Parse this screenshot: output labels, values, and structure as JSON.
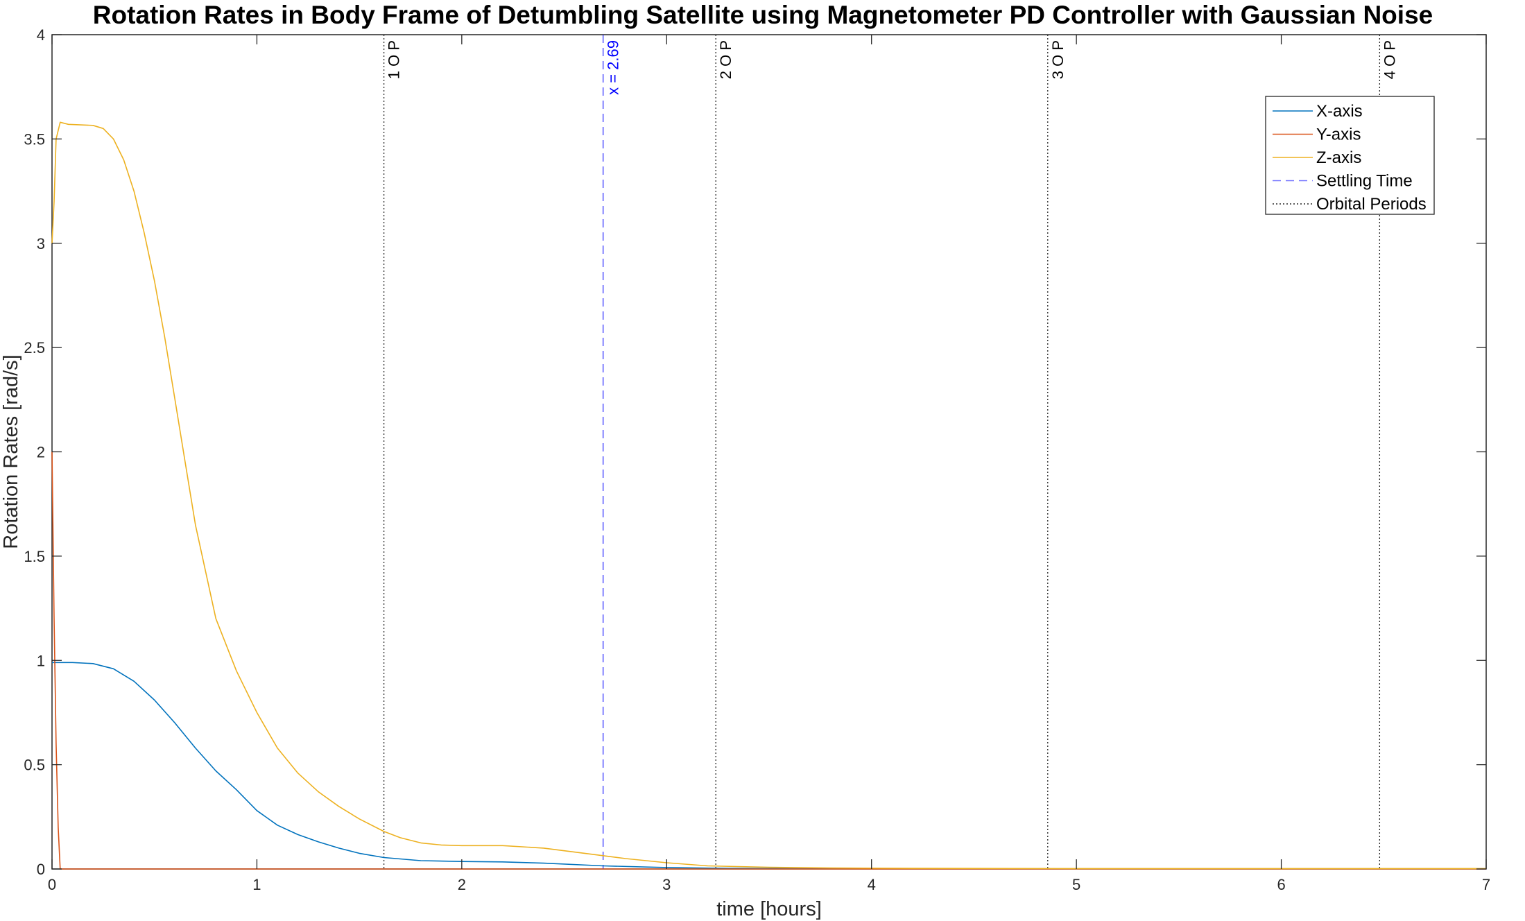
{
  "chart_data": {
    "type": "line",
    "title": "Rotation Rates in Body Frame of Detumbling Satellite using Magnetometer PD Controller with Gaussian Noise",
    "xlabel": "time [hours]",
    "ylabel": "Rotation Rates  [rad/s]",
    "xlim": [
      0,
      7
    ],
    "ylim": [
      0,
      4
    ],
    "x_ticks": [
      "0",
      "1",
      "2",
      "3",
      "4",
      "5",
      "6",
      "7"
    ],
    "y_ticks": [
      "0",
      "0.5",
      "1",
      "1.5",
      "2",
      "2.5",
      "3",
      "3.5",
      "4"
    ],
    "grid": false,
    "legend_position": "top-right",
    "series": [
      {
        "name": "X-axis",
        "color": "#0072BD",
        "points": [
          [
            0,
            0.99
          ],
          [
            0.02,
            0.99
          ],
          [
            0.1,
            0.99
          ],
          [
            0.2,
            0.985
          ],
          [
            0.3,
            0.96
          ],
          [
            0.4,
            0.9
          ],
          [
            0.5,
            0.81
          ],
          [
            0.6,
            0.7
          ],
          [
            0.7,
            0.58
          ],
          [
            0.8,
            0.47
          ],
          [
            0.9,
            0.38
          ],
          [
            1.0,
            0.28
          ],
          [
            1.1,
            0.21
          ],
          [
            1.2,
            0.165
          ],
          [
            1.3,
            0.13
          ],
          [
            1.4,
            0.1
          ],
          [
            1.5,
            0.075
          ],
          [
            1.62,
            0.055
          ],
          [
            1.8,
            0.04
          ],
          [
            2.0,
            0.036
          ],
          [
            2.2,
            0.034
          ],
          [
            2.4,
            0.028
          ],
          [
            2.69,
            0.015
          ],
          [
            3.0,
            0.007
          ],
          [
            3.3,
            0.003
          ],
          [
            3.6,
            0.002
          ],
          [
            4.0,
            0.001
          ],
          [
            5.0,
            0.001
          ],
          [
            6.0,
            0.001
          ],
          [
            7.0,
            0.001
          ]
        ]
      },
      {
        "name": "Y-axis",
        "color": "#D95319",
        "points": [
          [
            0,
            2.0
          ],
          [
            0.005,
            1.6
          ],
          [
            0.01,
            1.2
          ],
          [
            0.02,
            0.6
          ],
          [
            0.03,
            0.2
          ],
          [
            0.04,
            0.0
          ],
          [
            0.5,
            0.0
          ],
          [
            1.0,
            0.0
          ],
          [
            2.0,
            0.0
          ],
          [
            3.0,
            0.0
          ],
          [
            4.0,
            0.0
          ],
          [
            5.0,
            0.0
          ],
          [
            6.0,
            0.0
          ],
          [
            7.0,
            0.0
          ]
        ]
      },
      {
        "name": "Z-axis",
        "color": "#EDB120",
        "points": [
          [
            0,
            3.0
          ],
          [
            0.01,
            3.2
          ],
          [
            0.02,
            3.5
          ],
          [
            0.04,
            3.58
          ],
          [
            0.08,
            3.57
          ],
          [
            0.2,
            3.565
          ],
          [
            0.25,
            3.55
          ],
          [
            0.3,
            3.5
          ],
          [
            0.35,
            3.4
          ],
          [
            0.4,
            3.25
          ],
          [
            0.45,
            3.05
          ],
          [
            0.5,
            2.82
          ],
          [
            0.55,
            2.55
          ],
          [
            0.6,
            2.25
          ],
          [
            0.65,
            1.95
          ],
          [
            0.7,
            1.65
          ],
          [
            0.8,
            1.2
          ],
          [
            0.9,
            0.95
          ],
          [
            1.0,
            0.75
          ],
          [
            1.1,
            0.58
          ],
          [
            1.2,
            0.46
          ],
          [
            1.3,
            0.37
          ],
          [
            1.4,
            0.3
          ],
          [
            1.5,
            0.24
          ],
          [
            1.62,
            0.18
          ],
          [
            1.7,
            0.15
          ],
          [
            1.8,
            0.125
          ],
          [
            1.9,
            0.115
          ],
          [
            2.0,
            0.112
          ],
          [
            2.2,
            0.112
          ],
          [
            2.4,
            0.1
          ],
          [
            2.6,
            0.075
          ],
          [
            2.8,
            0.05
          ],
          [
            3.0,
            0.03
          ],
          [
            3.2,
            0.015
          ],
          [
            3.5,
            0.008
          ],
          [
            3.8,
            0.005
          ],
          [
            4.2,
            0.003
          ],
          [
            5.0,
            0.002
          ],
          [
            6.0,
            0.002
          ],
          [
            7.0,
            0.002
          ]
        ]
      }
    ],
    "settling_time": {
      "name": "Settling Time",
      "x": 2.69,
      "label": "x = 2.69",
      "color": "#0000FF"
    },
    "orbital_periods": {
      "name": "Orbital Periods",
      "color": "#262626",
      "lines": [
        {
          "x": 1.62,
          "label": "1 O P"
        },
        {
          "x": 3.24,
          "label": "2 O P"
        },
        {
          "x": 4.86,
          "label": "3 O P"
        },
        {
          "x": 6.48,
          "label": "4 O P"
        }
      ]
    }
  }
}
